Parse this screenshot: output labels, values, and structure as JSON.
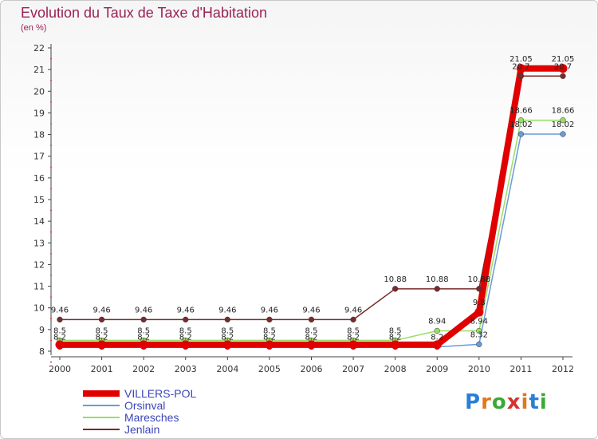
{
  "header": {
    "title": "Evolution du Taux de Taxe d'Habitation",
    "subtitle": "(en %)"
  },
  "logo": {
    "text": "Proxiti"
  },
  "chart_data": {
    "type": "line",
    "title": "Evolution du Taux de Taxe d'Habitation",
    "ylabel": "(en %)",
    "xlabel": "",
    "categories": [
      "2000",
      "2001",
      "2002",
      "2003",
      "2004",
      "2005",
      "2006",
      "2007",
      "2008",
      "2009",
      "2010",
      "2011",
      "2012"
    ],
    "yticks": [
      8,
      9,
      10,
      11,
      12,
      13,
      14,
      15,
      16,
      17,
      18,
      19,
      20,
      21,
      22
    ],
    "ylim": [
      8,
      22
    ],
    "grid": false,
    "legend": "bottom-left",
    "series": [
      {
        "name": "VILLERS-POL",
        "color": "#e00000",
        "values": [
          8.3,
          8.3,
          8.3,
          8.3,
          8.3,
          8.3,
          8.3,
          8.3,
          8.3,
          8.3,
          9.8,
          21.05,
          21.05
        ],
        "labels": [
          "",
          "",
          "",
          "",
          "",
          "",
          "",
          "",
          "",
          "",
          "9.8",
          "21.05",
          "21.05"
        ]
      },
      {
        "name": "Orsinval",
        "color": "#6a9ad8",
        "values": [
          8.2,
          8.2,
          8.2,
          8.2,
          8.2,
          8.2,
          8.2,
          8.2,
          8.2,
          8.2,
          8.32,
          18.02,
          18.02
        ],
        "labels": [
          "8.2",
          "8.2",
          "8.2",
          "8.2",
          "8.2",
          "8.2",
          "8.2",
          "8.2",
          "8.2",
          "8.2",
          "8.32",
          "18.02",
          "18.02"
        ]
      },
      {
        "name": "Maresches",
        "color": "#99dd66",
        "values": [
          8.5,
          8.5,
          8.5,
          8.5,
          8.5,
          8.5,
          8.5,
          8.5,
          8.5,
          8.94,
          8.94,
          18.66,
          18.66
        ],
        "labels": [
          "8.5",
          "8.5",
          "8.5",
          "8.5",
          "8.5",
          "8.5",
          "8.5",
          "8.5",
          "8.5",
          "8.94",
          "8.94",
          "18.66",
          "18.66"
        ]
      },
      {
        "name": "Jenlain",
        "color": "#7a2a2a",
        "values": [
          9.46,
          9.46,
          9.46,
          9.46,
          9.46,
          9.46,
          9.46,
          9.46,
          10.88,
          10.88,
          10.88,
          20.7,
          20.7
        ],
        "labels": [
          "9.46",
          "9.46",
          "9.46",
          "9.46",
          "9.46",
          "9.46",
          "9.46",
          "9.46",
          "10.88",
          "10.88",
          "10.88",
          "20.7",
          "20.7"
        ]
      }
    ]
  },
  "legend": {
    "items": [
      "VILLERS-POL",
      "Orsinval",
      "Maresches",
      "Jenlain"
    ]
  }
}
